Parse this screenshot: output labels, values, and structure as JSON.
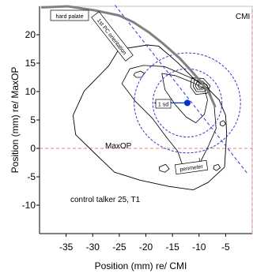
{
  "chart_data": {
    "type": "contour",
    "xlabel": "Position (mm) re/ CMI",
    "ylabel": "Position (mm) re/ MaxOP",
    "xlim": [
      -40,
      0
    ],
    "ylim": [
      -15,
      25
    ],
    "x_ticks": [
      "-35",
      "-30",
      "-25",
      "-20",
      "-15",
      "-10",
      "-5"
    ],
    "y_ticks": [
      "20",
      "15",
      "10",
      "5",
      "0",
      "-5",
      "-10"
    ],
    "grid": false,
    "annotations": {
      "hard_palate": "hard palate",
      "orientation_line": "1st PC orientation",
      "sd_label": "1 sd",
      "maxop": "MaxOP",
      "cmi": "CMI",
      "perimeter": "perimeter",
      "talker": "control talker 25, T1"
    },
    "colors": {
      "axis_line": "#000000",
      "plot_border": "#c0c0c0",
      "palate_curve": "#808080",
      "pc_line": "#3333cc",
      "sd_ellipse": "#3333cc",
      "mean_dot": "#0033cc",
      "reference_lines": "#e08080",
      "density_contours": "#000000"
    },
    "mean_point": [
      -12.2,
      8.0
    ],
    "sd_arrow": {
      "from": [
        -12.2,
        8.0
      ],
      "to": [
        -18.5,
        8.0
      ]
    },
    "sd_ellipses": [
      {
        "center": [
          -12.2,
          8.0
        ],
        "radii": [
          6.5,
          6.0
        ]
      },
      {
        "center": [
          -12.2,
          8.0
        ],
        "radii": [
          10.0,
          8.8
        ]
      }
    ],
    "reference_lines": {
      "x": 0,
      "y": 0
    },
    "palate_curve": [
      [
        -39.5,
        24.8
      ],
      [
        -34.7,
        25.0
      ],
      [
        -29.7,
        24.3
      ],
      [
        -25.1,
        23.4
      ],
      [
        -22.3,
        22.2
      ],
      [
        -19.4,
        20.4
      ],
      [
        -16.6,
        18.3
      ],
      [
        -13.7,
        15.9
      ],
      [
        -11.8,
        14.0
      ],
      [
        -9.9,
        12.0
      ],
      [
        -8.3,
        10.1
      ],
      [
        -7.0,
        7.4
      ]
    ],
    "pc_line": [
      [
        -25.8,
        25.2
      ],
      [
        -1.0,
        -4.3
      ]
    ],
    "perimeter": [
      [
        -19.7,
        18.2
      ],
      [
        -25.1,
        17.4
      ],
      [
        -27.0,
        14.5
      ],
      [
        -31.6,
        10.1
      ],
      [
        -33.7,
        5.8
      ],
      [
        -33.2,
        2.4
      ],
      [
        -28.8,
        -1.6
      ],
      [
        -25.9,
        -4.2
      ],
      [
        -21.1,
        -5.6
      ],
      [
        -15.7,
        -6.7
      ],
      [
        -11.1,
        -7.3
      ],
      [
        -8.3,
        -6.0
      ],
      [
        -5.2,
        -3.3
      ],
      [
        -4.8,
        2.7
      ],
      [
        -5.0,
        5.8
      ],
      [
        -6.2,
        8.5
      ],
      [
        -8.5,
        10.7
      ],
      [
        -10.9,
        12.2
      ],
      [
        -14.0,
        15.1
      ],
      [
        -17.6,
        18.0
      ],
      [
        -19.7,
        18.2
      ]
    ],
    "density_contours": [
      [
        [
          -23.0,
          14.0
        ],
        [
          -20.5,
          14.6
        ],
        [
          -16.5,
          14.4
        ],
        [
          -12.0,
          12.6
        ],
        [
          -8.5,
          11.2
        ],
        [
          -7.2,
          8.0
        ],
        [
          -6.8,
          3.5
        ],
        [
          -8.2,
          0.5
        ],
        [
          -9.8,
          -2.5
        ],
        [
          -12.8,
          -3.8
        ],
        [
          -14.0,
          -0.5
        ],
        [
          -16.0,
          1.8
        ],
        [
          -18.8,
          5.3
        ],
        [
          -22.0,
          8.3
        ],
        [
          -24.5,
          11.4
        ],
        [
          -23.0,
          14.0
        ]
      ],
      [
        [
          -17.0,
          13.2
        ],
        [
          -14.5,
          12.8
        ],
        [
          -11.5,
          11.7
        ],
        [
          -9.0,
          10.6
        ],
        [
          -8.4,
          8.5
        ],
        [
          -9.0,
          6.0
        ],
        [
          -10.6,
          4.5
        ],
        [
          -12.4,
          5.5
        ],
        [
          -14.4,
          7.6
        ],
        [
          -16.4,
          10.3
        ],
        [
          -17.0,
          13.2
        ]
      ],
      [
        [
          -11.4,
          12.4
        ],
        [
          -9.2,
          12.3
        ],
        [
          -7.9,
          11.0
        ],
        [
          -8.5,
          9.7
        ],
        [
          -10.6,
          9.5
        ],
        [
          -11.6,
          10.8
        ],
        [
          -11.4,
          12.4
        ]
      ],
      [
        [
          -10.9,
          12.0
        ],
        [
          -9.3,
          11.8
        ],
        [
          -8.4,
          10.9
        ],
        [
          -8.9,
          10.0
        ],
        [
          -10.5,
          10.0
        ],
        [
          -11.1,
          10.9
        ],
        [
          -10.9,
          12.0
        ]
      ],
      [
        [
          -10.4,
          11.7
        ],
        [
          -9.4,
          11.5
        ],
        [
          -8.8,
          10.9
        ],
        [
          -9.3,
          10.4
        ],
        [
          -10.3,
          10.4
        ],
        [
          -10.7,
          11.0
        ],
        [
          -10.4,
          11.7
        ]
      ],
      [
        [
          -10.0,
          11.4
        ],
        [
          -9.4,
          11.2
        ],
        [
          -9.2,
          10.9
        ],
        [
          -9.5,
          10.6
        ],
        [
          -10.0,
          10.7
        ],
        [
          -10.2,
          11.0
        ],
        [
          -10.0,
          11.4
        ]
      ],
      [
        [
          -22.0,
          13.3
        ],
        [
          -21.0,
          13.6
        ],
        [
          -20.3,
          13.2
        ],
        [
          -20.8,
          12.5
        ],
        [
          -21.8,
          12.5
        ],
        [
          -22.3,
          12.9
        ],
        [
          -22.0,
          13.3
        ]
      ],
      [
        [
          -17.5,
          -3.3
        ],
        [
          -16.3,
          -2.8
        ],
        [
          -15.6,
          -3.6
        ],
        [
          -16.4,
          -4.2
        ],
        [
          -17.4,
          -3.9
        ],
        [
          -17.5,
          -3.3
        ]
      ],
      [
        [
          -6.0,
          4.6
        ],
        [
          -5.4,
          4.9
        ],
        [
          -5.0,
          4.3
        ],
        [
          -5.5,
          3.9
        ],
        [
          -6.0,
          4.1
        ],
        [
          -6.0,
          4.6
        ]
      ],
      [
        [
          -7.2,
          -3.1
        ],
        [
          -6.4,
          -2.8
        ],
        [
          -6.0,
          -3.4
        ],
        [
          -6.7,
          -3.9
        ],
        [
          -7.3,
          -3.6
        ],
        [
          -7.2,
          -3.1
        ]
      ]
    ]
  }
}
